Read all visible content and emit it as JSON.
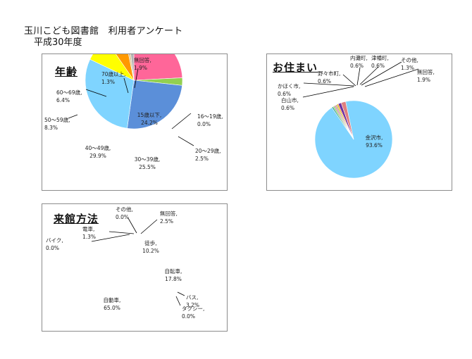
{
  "header": {
    "title": "玉川こども図書館　利用者アンケート",
    "subtitle": "平成30年度"
  },
  "colors": {
    "pink": "#ff6699",
    "green": "#92d050",
    "steelblue": "#5b8fd9",
    "skyblue": "#7fd4ff",
    "yellow": "#ffff00",
    "orange": "#ff9900",
    "beige": "#e0c89a",
    "gray": "#b3b3b3",
    "purple": "#7030a0",
    "teal": "#2d9a8c",
    "magenta": "#d46ab0",
    "olive": "#a8b85a",
    "salmon": "#e07f7f"
  },
  "chart_data": [
    {
      "type": "pie",
      "title": "年齢",
      "slices": [
        {
          "label": "15歳以下,",
          "value": 24.2,
          "text": "24.2%"
        },
        {
          "label": "16～19歳,",
          "value": 0.0,
          "text": "0.0%"
        },
        {
          "label": "20～29歳,",
          "value": 2.5,
          "text": "2.5%"
        },
        {
          "label": "30～39歳,",
          "value": 25.5,
          "text": "25.5%"
        },
        {
          "label": "40～49歳,",
          "value": 29.9,
          "text": "29.9%"
        },
        {
          "label": "50～59歳,",
          "value": 8.3,
          "text": "8.3%"
        },
        {
          "label": "60～69歳,",
          "value": 6.4,
          "text": "6.4%"
        },
        {
          "label": "70歳以上,",
          "value": 1.3,
          "text": "1.3%"
        },
        {
          "label": "無回答,",
          "value": 1.9,
          "text": "1.9%"
        }
      ]
    },
    {
      "type": "pie",
      "title": "お住まい",
      "slices": [
        {
          "label": "金沢市,",
          "value": 93.6,
          "text": "93.6%"
        },
        {
          "label": "白山市,",
          "value": 0.6,
          "text": "0.6%"
        },
        {
          "label": "かほく市,",
          "value": 0.6,
          "text": "0.6%"
        },
        {
          "label": "野々市町,",
          "value": 0.6,
          "text": "0.6%"
        },
        {
          "label": "内灘町,",
          "value": 0.6,
          "text": "0.6%"
        },
        {
          "label": "津幡町,",
          "value": 0.6,
          "text": "0.6%"
        },
        {
          "label": "その他,",
          "value": 1.3,
          "text": "1.3%"
        },
        {
          "label": "無回答,",
          "value": 1.9,
          "text": "1.9%"
        }
      ]
    },
    {
      "type": "pie",
      "title": "来館方法",
      "slices": [
        {
          "label": "徒歩,",
          "value": 10.2,
          "text": "10.2%"
        },
        {
          "label": "自転車,",
          "value": 17.8,
          "text": "17.8%"
        },
        {
          "label": "バス,",
          "value": 3.2,
          "text": "3.2%"
        },
        {
          "label": "タクシー,",
          "value": 0.0,
          "text": "0.0%"
        },
        {
          "label": "自動車,",
          "value": 65.0,
          "text": "65.0%"
        },
        {
          "label": "バイク,",
          "value": 0.0,
          "text": "0.0%"
        },
        {
          "label": "電車,",
          "value": 1.3,
          "text": "1.3%"
        },
        {
          "label": "その他,",
          "value": 0.0,
          "text": "0.0%"
        },
        {
          "label": "無回答,",
          "value": 2.5,
          "text": "2.5%"
        }
      ]
    }
  ]
}
